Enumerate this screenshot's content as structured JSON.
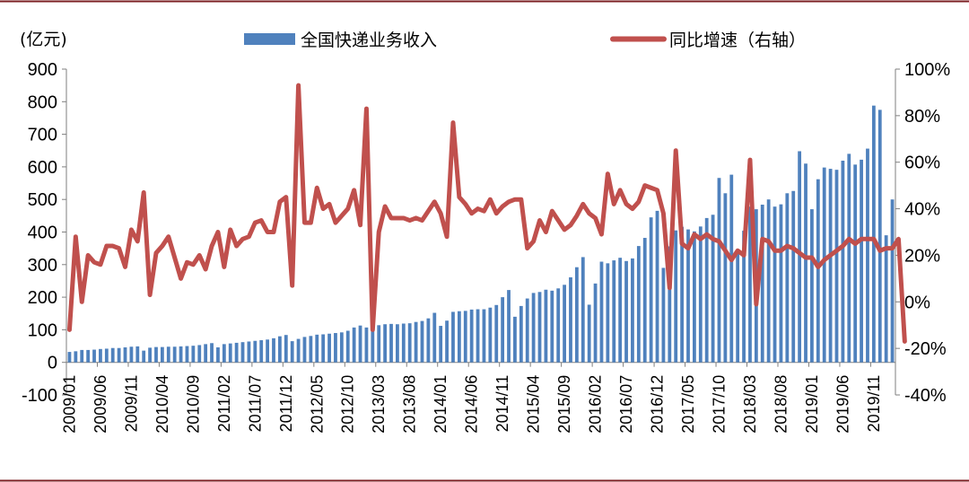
{
  "chart_data": {
    "type": "bar+line",
    "unit_label": "(亿元)",
    "left_axis": {
      "ylim": [
        -100,
        900
      ],
      "ticks": [
        "900",
        "800",
        "700",
        "600",
        "500",
        "400",
        "300",
        "200",
        "100",
        "0",
        "-100"
      ]
    },
    "right_axis": {
      "ylim": [
        -40,
        100
      ],
      "ticks": [
        "100%",
        "80%",
        "60%",
        "40%",
        "20%",
        "0%",
        "-20%",
        "-40%"
      ]
    },
    "legend": [
      {
        "name": "全国快递业务收入",
        "kind": "bar",
        "color": "#4F81BD"
      },
      {
        "name": "同比增速（右轴）",
        "kind": "line",
        "color": "#C0504D"
      }
    ],
    "x_tick_labels": [
      "2009/01",
      "2009/06",
      "2009/11",
      "2010/04",
      "2010/09",
      "2011/02",
      "2011/07",
      "2011/12",
      "2012/05",
      "2012/10",
      "2013/03",
      "2013/08",
      "2014/01",
      "2014/06",
      "2014/11",
      "2015/04",
      "2015/09",
      "2016/02",
      "2016/07",
      "2016/12",
      "2017/05",
      "2017/10",
      "2018/03",
      "2018/08",
      "2019/01",
      "2019/06",
      "2019/11"
    ],
    "start": "2009/01",
    "series": [
      {
        "name": "全国快递业务收入",
        "axis": "left",
        "values": [
          32,
          34,
          38,
          38,
          39,
          41,
          42,
          44,
          44,
          46,
          48,
          49,
          36,
          45,
          47,
          47,
          48,
          48,
          49,
          50,
          51,
          53,
          56,
          59,
          46,
          56,
          58,
          60,
          62,
          64,
          66,
          68,
          70,
          74,
          80,
          84,
          65,
          72,
          78,
          81,
          85,
          86,
          88,
          90,
          92,
          97,
          107,
          113,
          107,
          105,
          114,
          117,
          118,
          117,
          119,
          120,
          124,
          127,
          135,
          152,
          112,
          128,
          155,
          157,
          158,
          162,
          163,
          163,
          168,
          176,
          200,
          222,
          140,
          173,
          196,
          213,
          216,
          223,
          220,
          227,
          238,
          261,
          292,
          323,
          177,
          242,
          309,
          304,
          313,
          321,
          311,
          319,
          357,
          382,
          445,
          465,
          290,
          356,
          405,
          416,
          408,
          402,
          417,
          443,
          453,
          566,
          519,
          576,
          336,
          404,
          478,
          470,
          484,
          500,
          478,
          485,
          519,
          526,
          648,
          610,
          470,
          562,
          598,
          594,
          591,
          619,
          640,
          607,
          622,
          656,
          788,
          775,
          390,
          500
        ],
        "color": "#4F81BD"
      },
      {
        "name": "同比增速（右轴）",
        "axis": "right",
        "values": [
          -12,
          28,
          0,
          20,
          17,
          16,
          24,
          24,
          23,
          15,
          31,
          26,
          47,
          3,
          21,
          24,
          28,
          19,
          10,
          17,
          16,
          20,
          14,
          24,
          30,
          15,
          31,
          24,
          27,
          28,
          34,
          35,
          30,
          30,
          43,
          45,
          7,
          93,
          34,
          34,
          49,
          40,
          42,
          34,
          37,
          40,
          48,
          33,
          83,
          -12,
          30,
          41,
          36,
          36,
          36,
          35,
          36,
          35,
          39,
          43,
          38,
          28,
          77,
          45,
          42,
          38,
          40,
          39,
          44,
          38,
          41,
          43,
          44,
          44,
          23,
          26,
          35,
          30,
          39,
          35,
          31,
          33,
          37,
          42,
          38,
          36,
          29,
          55,
          42,
          48,
          42,
          40,
          43,
          50,
          49,
          48,
          38,
          6,
          65,
          25,
          23,
          29,
          27,
          29,
          27,
          26,
          22,
          18,
          22,
          20,
          61,
          -1,
          27,
          26,
          22,
          22,
          24,
          23,
          21,
          19,
          19,
          15,
          18,
          20,
          22,
          24,
          27,
          25,
          27,
          27,
          27,
          22,
          23,
          23,
          27,
          -17
        ]
      }
    ]
  }
}
